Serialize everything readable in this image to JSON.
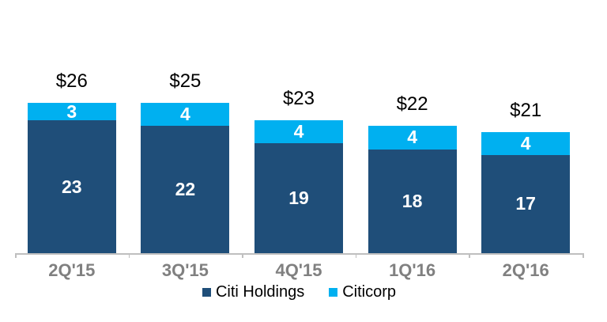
{
  "chart_data": {
    "type": "bar",
    "stacked": true,
    "title": "",
    "xlabel": "",
    "ylabel": "",
    "categories": [
      "2Q'15",
      "3Q'15",
      "4Q'15",
      "1Q'16",
      "2Q'16"
    ],
    "series": [
      {
        "name": "Citi Holdings",
        "color": "#1F4E79",
        "values": [
          23,
          22,
          19,
          18,
          17
        ]
      },
      {
        "name": "Citicorp",
        "color": "#00B0F0",
        "values": [
          3,
          4,
          4,
          4,
          4
        ]
      }
    ],
    "totals": [
      26,
      25,
      23,
      22,
      21
    ],
    "total_labels": [
      "$26",
      "$25",
      "$23",
      "$22",
      "$21"
    ],
    "value_labels_shown": true,
    "ylim": [
      0,
      26
    ],
    "y_axis_visible": false,
    "grid": false,
    "legend_position": "bottom",
    "colors": {
      "axis_line": "#BFBFBF",
      "x_tick_label": "#808080",
      "total_label": "#000000",
      "segment_value_label": "#FFFFFF",
      "background": "#FFFFFF"
    }
  }
}
